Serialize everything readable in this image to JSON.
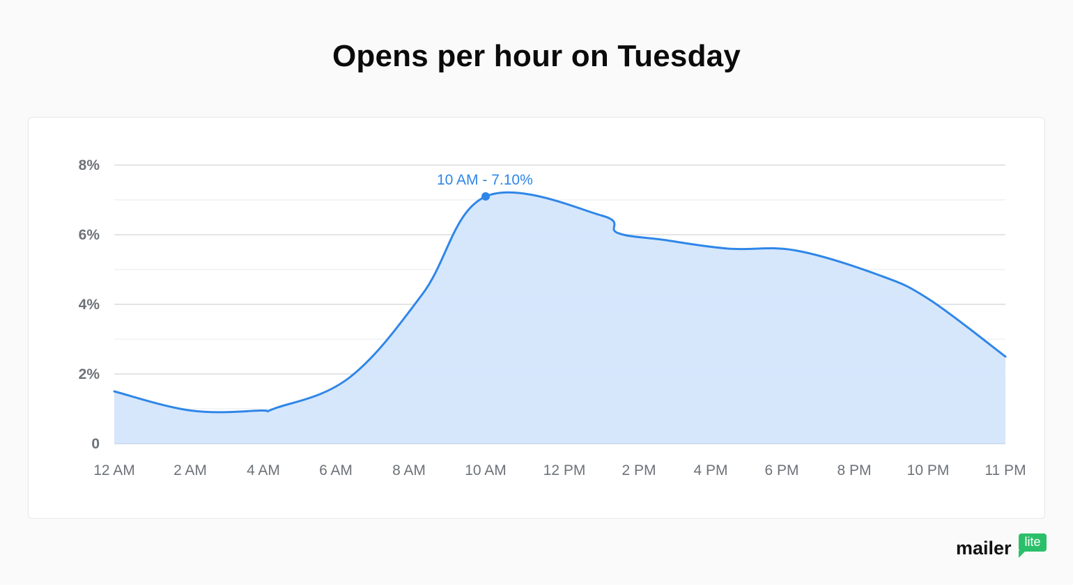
{
  "colors": {
    "line": "#2f86e8",
    "fill": "#d4e6fc",
    "grid_major": "#d9dbde",
    "grid_minor": "#eceef0",
    "axis_text": "#6d7278"
  },
  "brand": {
    "word": "mailer",
    "badge": "lite"
  },
  "chart_data": {
    "type": "area",
    "title": "Opens per hour on Tuesday",
    "xlabel": "",
    "ylabel": "",
    "x_ticks": [
      "12 AM",
      "2 AM",
      "4 AM",
      "6 AM",
      "8 AM",
      "10 AM",
      "12 PM",
      "2 PM",
      "4 PM",
      "6 PM",
      "8 PM",
      "10 PM",
      "11 PM"
    ],
    "y_ticks": [
      "0",
      "2%",
      "4%",
      "6%",
      "8%"
    ],
    "ylim": [
      0,
      8
    ],
    "grid": true,
    "series": [
      {
        "values": [
          1.5,
          0.95,
          0.95,
          1.02,
          1.9,
          4.3,
          7.1,
          6.55,
          6.05,
          5.85,
          5.6,
          5.55,
          4.85,
          4.15,
          2.5
        ]
      }
    ],
    "annotation": {
      "text": "10 AM - 7.10%",
      "x_label": "10 AM",
      "value": 7.1
    }
  }
}
